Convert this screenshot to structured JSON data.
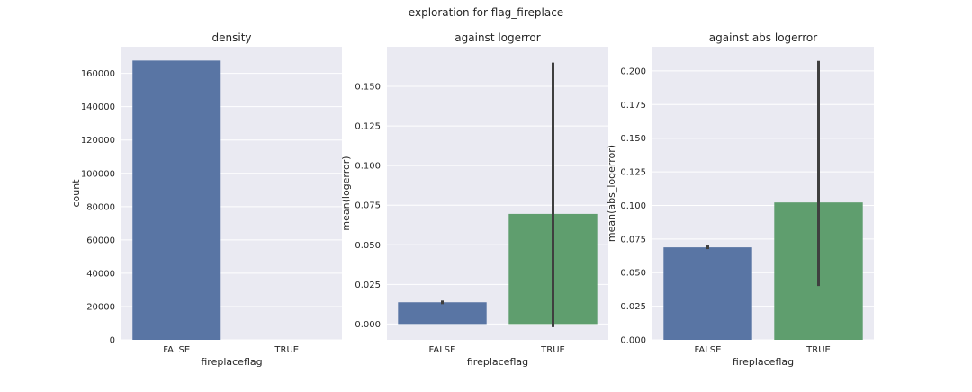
{
  "suptitle": "exploration for flag_fireplace",
  "colors": {
    "background": "#eaeaf2",
    "grid": "#ffffff",
    "false_bar": "#5975a4",
    "true_bar": "#5f9e6e",
    "error_bar": "#3f3f3f"
  },
  "chart_data": [
    {
      "type": "bar",
      "title": "density",
      "xlabel": "fireplaceflag",
      "ylabel": "count",
      "categories": [
        "FALSE",
        "TRUE"
      ],
      "values": [
        167700,
        0
      ],
      "ylim": [
        0,
        176000
      ],
      "yticks": [
        0,
        20000,
        40000,
        60000,
        80000,
        100000,
        120000,
        140000,
        160000
      ],
      "ytick_labels": [
        "0",
        "20000",
        "40000",
        "60000",
        "80000",
        "100000",
        "120000",
        "140000",
        "160000"
      ],
      "grid": true
    },
    {
      "type": "bar",
      "title": "against logerror",
      "xlabel": "fireplaceflag",
      "ylabel": "mean(logerror)",
      "categories": [
        "FALSE",
        "TRUE"
      ],
      "values": [
        0.0137,
        0.0695
      ],
      "error": [
        [
          0.0125,
          0.0148
        ],
        [
          -0.002,
          0.165
        ]
      ],
      "ylim": [
        -0.01,
        0.175
      ],
      "yticks": [
        0,
        0.025,
        0.05,
        0.075,
        0.1,
        0.125,
        0.15
      ],
      "ytick_labels": [
        "0.000",
        "0.025",
        "0.050",
        "0.075",
        "0.100",
        "0.125",
        "0.150"
      ],
      "grid": true
    },
    {
      "type": "bar",
      "title": "against abs logerror",
      "xlabel": "fireplaceflag",
      "ylabel": "mean(abs_logerror)",
      "categories": [
        "FALSE",
        "TRUE"
      ],
      "values": [
        0.0688,
        0.1022
      ],
      "error": [
        [
          0.0675,
          0.0702
        ],
        [
          0.04,
          0.2075
        ]
      ],
      "ylim": [
        0,
        0.218
      ],
      "yticks": [
        0,
        0.025,
        0.05,
        0.075,
        0.1,
        0.125,
        0.15,
        0.175,
        0.2
      ],
      "ytick_labels": [
        "0.000",
        "0.025",
        "0.050",
        "0.075",
        "0.100",
        "0.125",
        "0.150",
        "0.175",
        "0.200"
      ],
      "grid": true
    }
  ]
}
